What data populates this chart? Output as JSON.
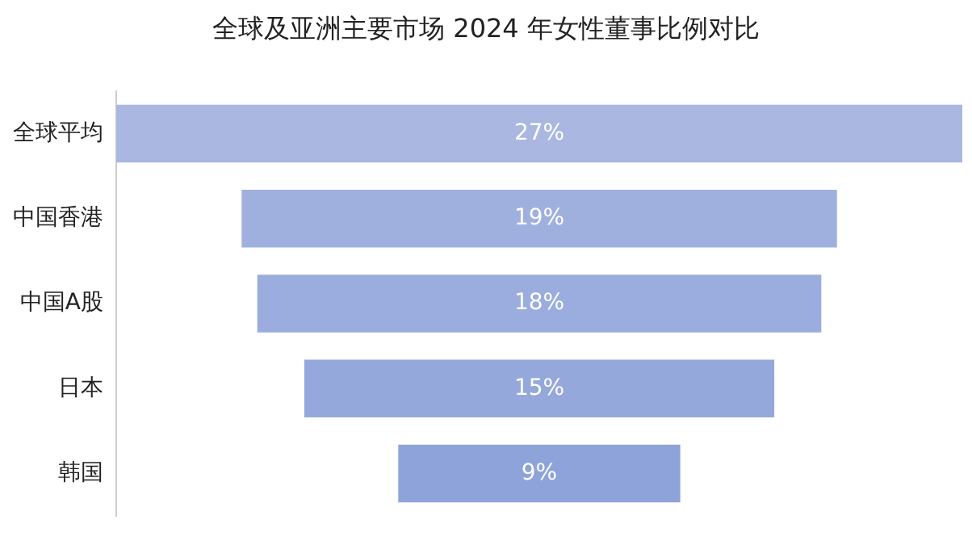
{
  "chart_data": {
    "type": "other",
    "title": "全球及亚洲主要市场 2024 年女性董事比例对比",
    "categories": [
      "全球平均",
      "中国香港",
      "中国A股",
      "日本",
      "韩国"
    ],
    "values": [
      27,
      19,
      18,
      15,
      9
    ],
    "value_labels": [
      "27%",
      "19%",
      "18%",
      "15%",
      "9%"
    ],
    "colors": [
      "#a9b7e1",
      "#a0b0de",
      "#9badde",
      "#95a8db",
      "#8ea3d9"
    ],
    "legend": false
  }
}
